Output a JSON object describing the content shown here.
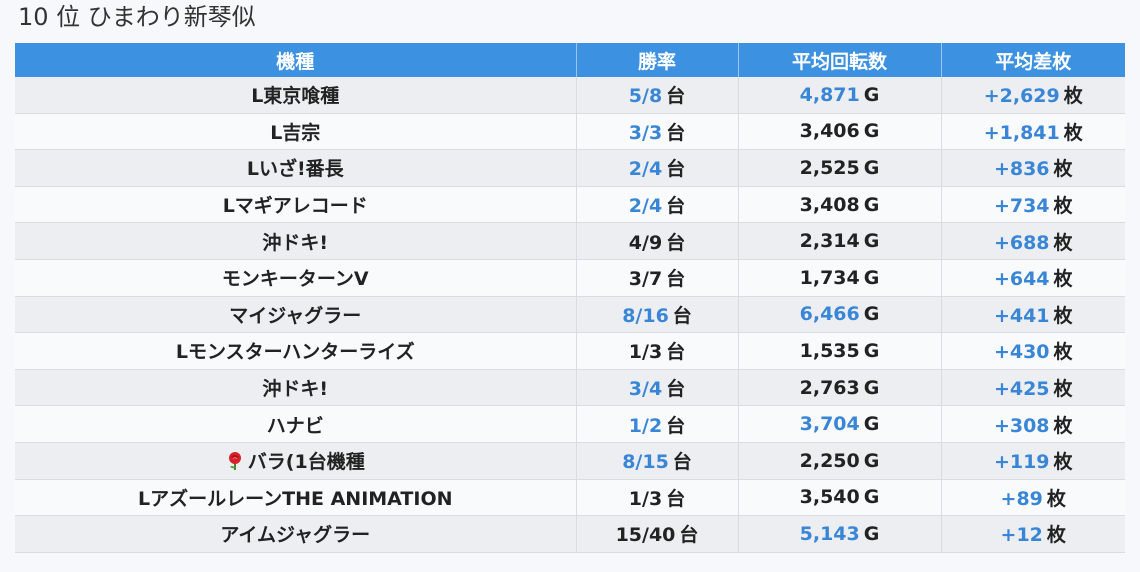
{
  "page": {
    "title": "10 位 ひまわり新琴似"
  },
  "table": {
    "columns": [
      "機種",
      "勝率",
      "平均回転数",
      "平均差枚"
    ],
    "units": {
      "win": "台",
      "spins": "G",
      "diff": "枚"
    },
    "rows": [
      {
        "name": "L東京喰種",
        "win": "5/8",
        "win_blue": true,
        "spins": "4,871",
        "spins_blue": true,
        "diff": "+2,629"
      },
      {
        "name": "L吉宗",
        "win": "3/3",
        "win_blue": true,
        "spins": "3,406",
        "spins_blue": false,
        "diff": "+1,841"
      },
      {
        "name": "Lいざ!番長",
        "win": "2/4",
        "win_blue": true,
        "spins": "2,525",
        "spins_blue": false,
        "diff": "+836"
      },
      {
        "name": "Lマギアレコード",
        "win": "2/4",
        "win_blue": true,
        "spins": "3,408",
        "spins_blue": false,
        "diff": "+734"
      },
      {
        "name": "沖ドキ!",
        "win": "4/9",
        "win_blue": false,
        "spins": "2,314",
        "spins_blue": false,
        "diff": "+688"
      },
      {
        "name": "モンキーターンV",
        "win": "3/7",
        "win_blue": false,
        "spins": "1,734",
        "spins_blue": false,
        "diff": "+644"
      },
      {
        "name": "マイジャグラー",
        "win": "8/16",
        "win_blue": true,
        "spins": "6,466",
        "spins_blue": true,
        "diff": "+441"
      },
      {
        "name": "Lモンスターハンターライズ",
        "win": "1/3",
        "win_blue": false,
        "spins": "1,535",
        "spins_blue": false,
        "diff": "+430"
      },
      {
        "name": "沖ドキ!",
        "win": "3/4",
        "win_blue": true,
        "spins": "2,763",
        "spins_blue": false,
        "diff": "+425"
      },
      {
        "name": "ハナビ",
        "win": "1/2",
        "win_blue": true,
        "spins": "3,704",
        "spins_blue": true,
        "diff": "+308"
      },
      {
        "name": "バラ(1台機種",
        "rose": true,
        "win": "8/15",
        "win_blue": true,
        "spins": "2,250",
        "spins_blue": false,
        "diff": "+119"
      },
      {
        "name": "LアズールレーンTHE ANIMATION",
        "win": "1/3",
        "win_blue": false,
        "spins": "3,540",
        "spins_blue": false,
        "diff": "+89"
      },
      {
        "name": "アイムジャグラー",
        "win": "15/40",
        "win_blue": false,
        "spins": "5,143",
        "spins_blue": true,
        "diff": "+12"
      }
    ]
  },
  "icons": {
    "rose": "rose-icon"
  },
  "colors": {
    "header_bg": "#3c91e1",
    "highlight": "#3a86d6"
  }
}
